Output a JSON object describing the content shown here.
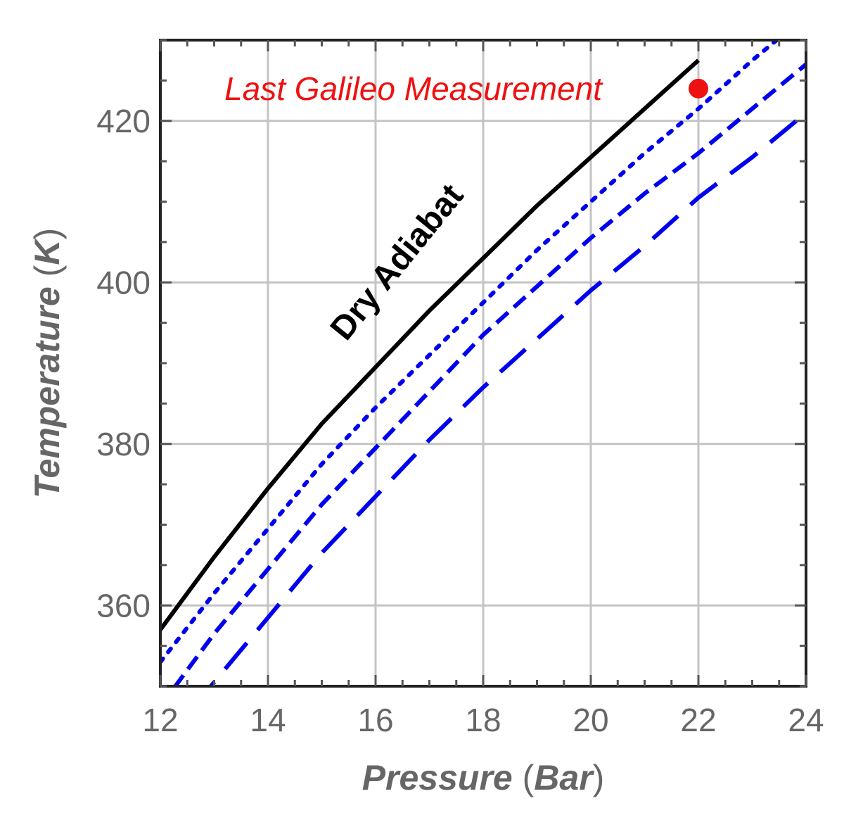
{
  "chart_data": {
    "type": "line",
    "xlabel": {
      "var": "Pressure",
      "unit": "Bar"
    },
    "ylabel": {
      "var": "Temperature",
      "unit": "K"
    },
    "xlim": [
      12,
      24
    ],
    "ylim": [
      350,
      430
    ],
    "x_ticks": [
      "12",
      "14",
      "16",
      "18",
      "20",
      "22",
      "24"
    ],
    "y_ticks": [
      "360",
      "380",
      "400",
      "420"
    ],
    "x_tick_values": [
      12,
      14,
      16,
      18,
      20,
      22,
      24
    ],
    "y_tick_values": [
      360,
      380,
      400,
      420
    ],
    "grid": true,
    "series": [
      {
        "style": "solid",
        "color": "#000000",
        "x": [
          12,
          13,
          14,
          15,
          16,
          17,
          18,
          19,
          20,
          21,
          22
        ],
        "y": [
          357.0,
          366.0,
          374.5,
          382.5,
          389.5,
          396.5,
          403.0,
          409.5,
          415.5,
          421.5,
          427.5
        ]
      },
      {
        "style": "dotted",
        "color": "#0000ee",
        "x": [
          12,
          13,
          14,
          15,
          16,
          17,
          18,
          19,
          20,
          21,
          22,
          23,
          24
        ],
        "y": [
          353.0,
          361.5,
          369.5,
          377.5,
          384.5,
          391.0,
          397.5,
          404.0,
          410.0,
          416.0,
          421.5,
          427.5,
          433.0
        ]
      },
      {
        "style": "dashed",
        "color": "#0000ee",
        "x": [
          12,
          13,
          14,
          15,
          16,
          17,
          18,
          19,
          20,
          21,
          22,
          23,
          24
        ],
        "y": [
          347.5,
          356.5,
          364.5,
          372.5,
          379.5,
          386.5,
          393.5,
          399.5,
          405.5,
          411.0,
          416.0,
          421.5,
          427.0
        ]
      },
      {
        "style": "longdash",
        "color": "#0000ee",
        "x": [
          12,
          13,
          14,
          15,
          16,
          17,
          18,
          19,
          20,
          21,
          22,
          23,
          24
        ],
        "y": [
          342.5,
          350.5,
          358.5,
          366.5,
          373.5,
          380.5,
          387.0,
          393.0,
          399.0,
          404.5,
          410.5,
          415.5,
          421.0
        ]
      }
    ],
    "points": [
      {
        "x": 22.0,
        "y": 424.0,
        "color": "#ee1111"
      }
    ],
    "annotations": [
      {
        "text": "Last Galileo Measurement",
        "x": 16.7,
        "y": 424.0,
        "color": "#ee1111",
        "rotation": 0
      },
      {
        "text": "Dry Adiabat",
        "x": 16.4,
        "y": 402.5,
        "color": "#000000",
        "rotation": -51
      }
    ]
  }
}
